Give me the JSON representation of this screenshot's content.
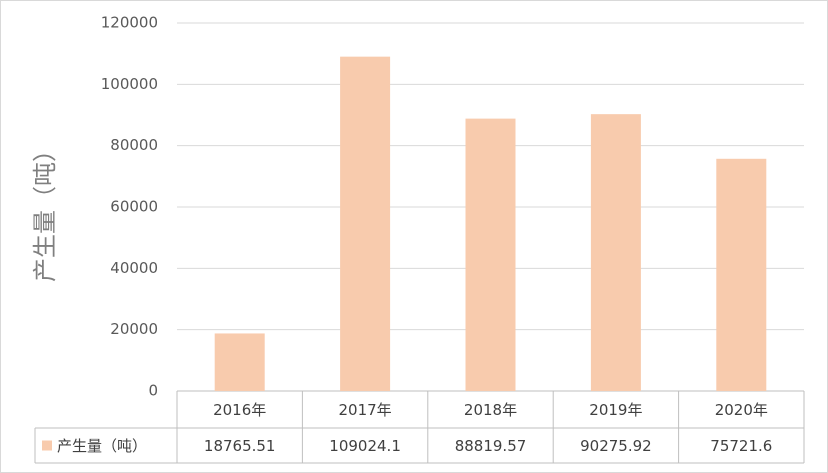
{
  "chart_data": {
    "type": "bar",
    "y_label": "产生量（吨）",
    "categories": [
      "2016年",
      "2017年",
      "2018年",
      "2019年",
      "2020年"
    ],
    "series": [
      {
        "name": "产生量（吨）",
        "color": "#f8cbad",
        "values": [
          18765.51,
          109024.1,
          88819.57,
          90275.92,
          75721.6
        ]
      }
    ],
    "ylim": [
      0,
      120000
    ],
    "yticks": [
      0,
      20000,
      40000,
      60000,
      80000,
      100000,
      120000
    ],
    "grid": true
  }
}
